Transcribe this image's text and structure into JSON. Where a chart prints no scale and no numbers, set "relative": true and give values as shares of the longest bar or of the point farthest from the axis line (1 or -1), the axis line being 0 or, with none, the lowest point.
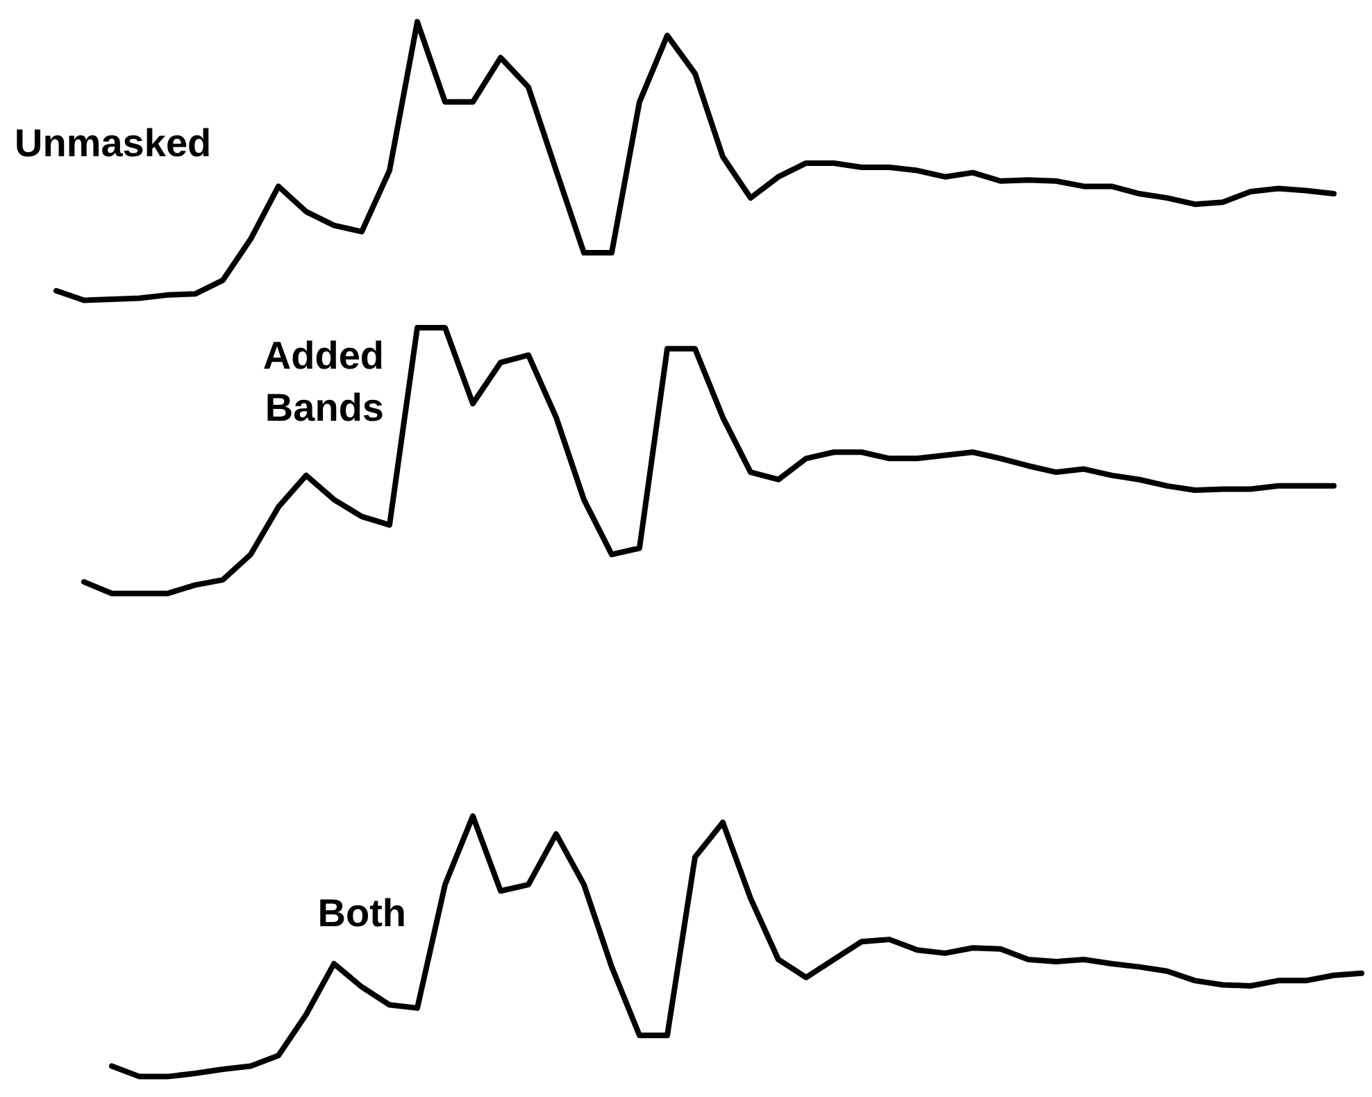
{
  "chart_data": {
    "type": "line",
    "relative": true,
    "categories": [
      null,
      null,
      null,
      null,
      null,
      null,
      null,
      null,
      null,
      null,
      null,
      null,
      null,
      null,
      null,
      null,
      null,
      null,
      null,
      null,
      null,
      null,
      null,
      null,
      null,
      null,
      null,
      null,
      null,
      null,
      null,
      null,
      null,
      null,
      null,
      null,
      null,
      null,
      null,
      null,
      null,
      null,
      null,
      null,
      null,
      null,
      null,
      null
    ],
    "series": [
      {
        "name": "Unmasked",
        "color": "#000000",
        "values": [
          0.745,
          0.736,
          0.737,
          0.738,
          0.741,
          0.742,
          0.755,
          0.794,
          0.844,
          0.82,
          0.807,
          0.801,
          0.859,
          1.0,
          0.924,
          0.924,
          0.966,
          0.938,
          0.859,
          0.781,
          0.781,
          0.924,
          0.987,
          0.951,
          0.872,
          0.833,
          0.853,
          0.866,
          0.866,
          0.862,
          0.862,
          0.859,
          0.853,
          0.857,
          0.849,
          0.85,
          0.849,
          0.844,
          0.844,
          0.837,
          0.833,
          0.827,
          0.829,
          0.839,
          0.842,
          0.84,
          0.837,
          null
        ]
      },
      {
        "name": "Added Bands",
        "color": "#000000",
        "values": [
          null,
          0.469,
          0.458,
          0.458,
          0.458,
          0.466,
          0.471,
          0.495,
          0.54,
          0.57,
          0.547,
          0.531,
          0.523,
          0.71,
          0.71,
          0.638,
          0.677,
          0.684,
          0.625,
          0.547,
          0.495,
          0.501,
          0.69,
          0.69,
          0.625,
          0.573,
          0.566,
          0.586,
          0.592,
          0.592,
          0.586,
          0.586,
          0.589,
          0.592,
          0.586,
          0.579,
          0.573,
          0.576,
          0.57,
          0.566,
          0.56,
          0.556,
          0.557,
          0.557,
          0.56,
          0.56,
          0.56,
          null
        ]
      },
      {
        "name": "Both",
        "color": "#000000",
        "values": [
          null,
          null,
          0.01,
          0,
          0,
          0.003,
          0.007,
          0.01,
          0.02,
          0.059,
          0.107,
          0.085,
          0.068,
          0.065,
          0.182,
          0.247,
          0.176,
          0.182,
          0.23,
          0.182,
          0.104,
          0.039,
          0.039,
          0.208,
          0.241,
          0.169,
          0.111,
          0.094,
          0.111,
          0.128,
          0.13,
          0.12,
          0.117,
          0.122,
          0.121,
          0.111,
          0.109,
          0.111,
          0.107,
          0.104,
          0.1,
          0.091,
          0.087,
          0.086,
          0.091,
          0.091,
          0.096,
          0.098
        ]
      }
    ]
  }
}
